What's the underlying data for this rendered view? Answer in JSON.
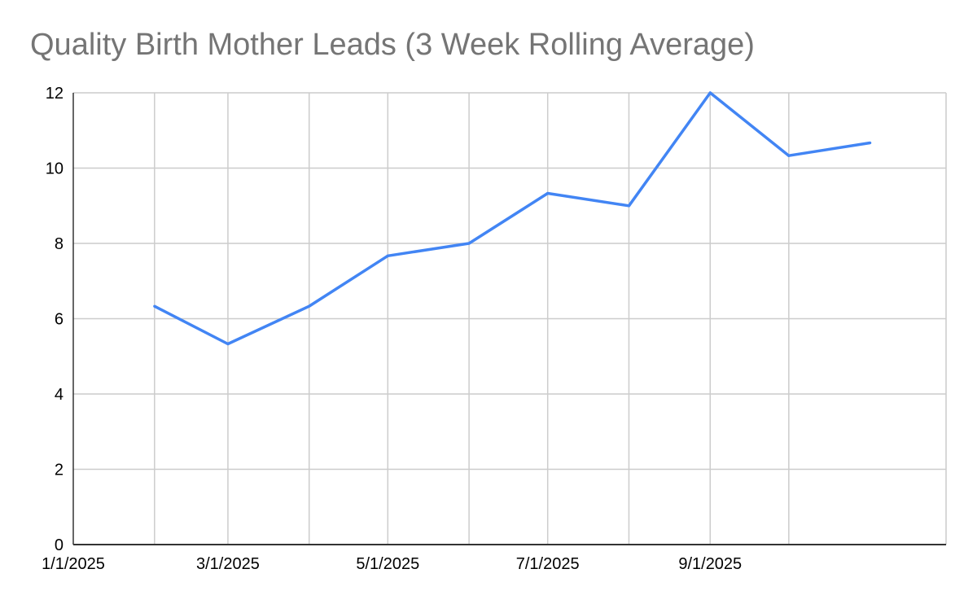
{
  "chart_data": {
    "type": "line",
    "title": "Quality Birth Mother Leads (3 Week Rolling Average)",
    "xlabel": "",
    "ylabel": "",
    "x_axis": {
      "type": "date",
      "min": "2025-01-01",
      "max": "2025-11-30",
      "ticks": [
        {
          "date": "2025-01-01",
          "label": "1/1/2025"
        },
        {
          "date": "2025-03-01",
          "label": "3/1/2025"
        },
        {
          "date": "2025-05-01",
          "label": "5/1/2025"
        },
        {
          "date": "2025-07-01",
          "label": "7/1/2025"
        },
        {
          "date": "2025-09-01",
          "label": "9/1/2025"
        }
      ],
      "minor_gridlines": [
        "2025-02-01",
        "2025-04-01",
        "2025-06-01",
        "2025-08-01",
        "2025-10-01"
      ]
    },
    "y_axis": {
      "min": 0,
      "max": 12,
      "ticks": [
        0,
        2,
        4,
        6,
        8,
        10,
        12
      ]
    },
    "grid": true,
    "legend": "none",
    "series": [
      {
        "color": "#4285f4",
        "points": [
          {
            "x": "2025-02-01",
            "y": 6.33
          },
          {
            "x": "2025-03-01",
            "y": 5.33
          },
          {
            "x": "2025-04-01",
            "y": 6.33
          },
          {
            "x": "2025-05-01",
            "y": 7.67
          },
          {
            "x": "2025-06-01",
            "y": 8.0
          },
          {
            "x": "2025-07-01",
            "y": 9.33
          },
          {
            "x": "2025-08-01",
            "y": 9.0
          },
          {
            "x": "2025-09-01",
            "y": 12.0
          },
          {
            "x": "2025-10-01",
            "y": 10.33
          },
          {
            "x": "2025-11-01",
            "y": 10.67
          }
        ]
      }
    ]
  }
}
